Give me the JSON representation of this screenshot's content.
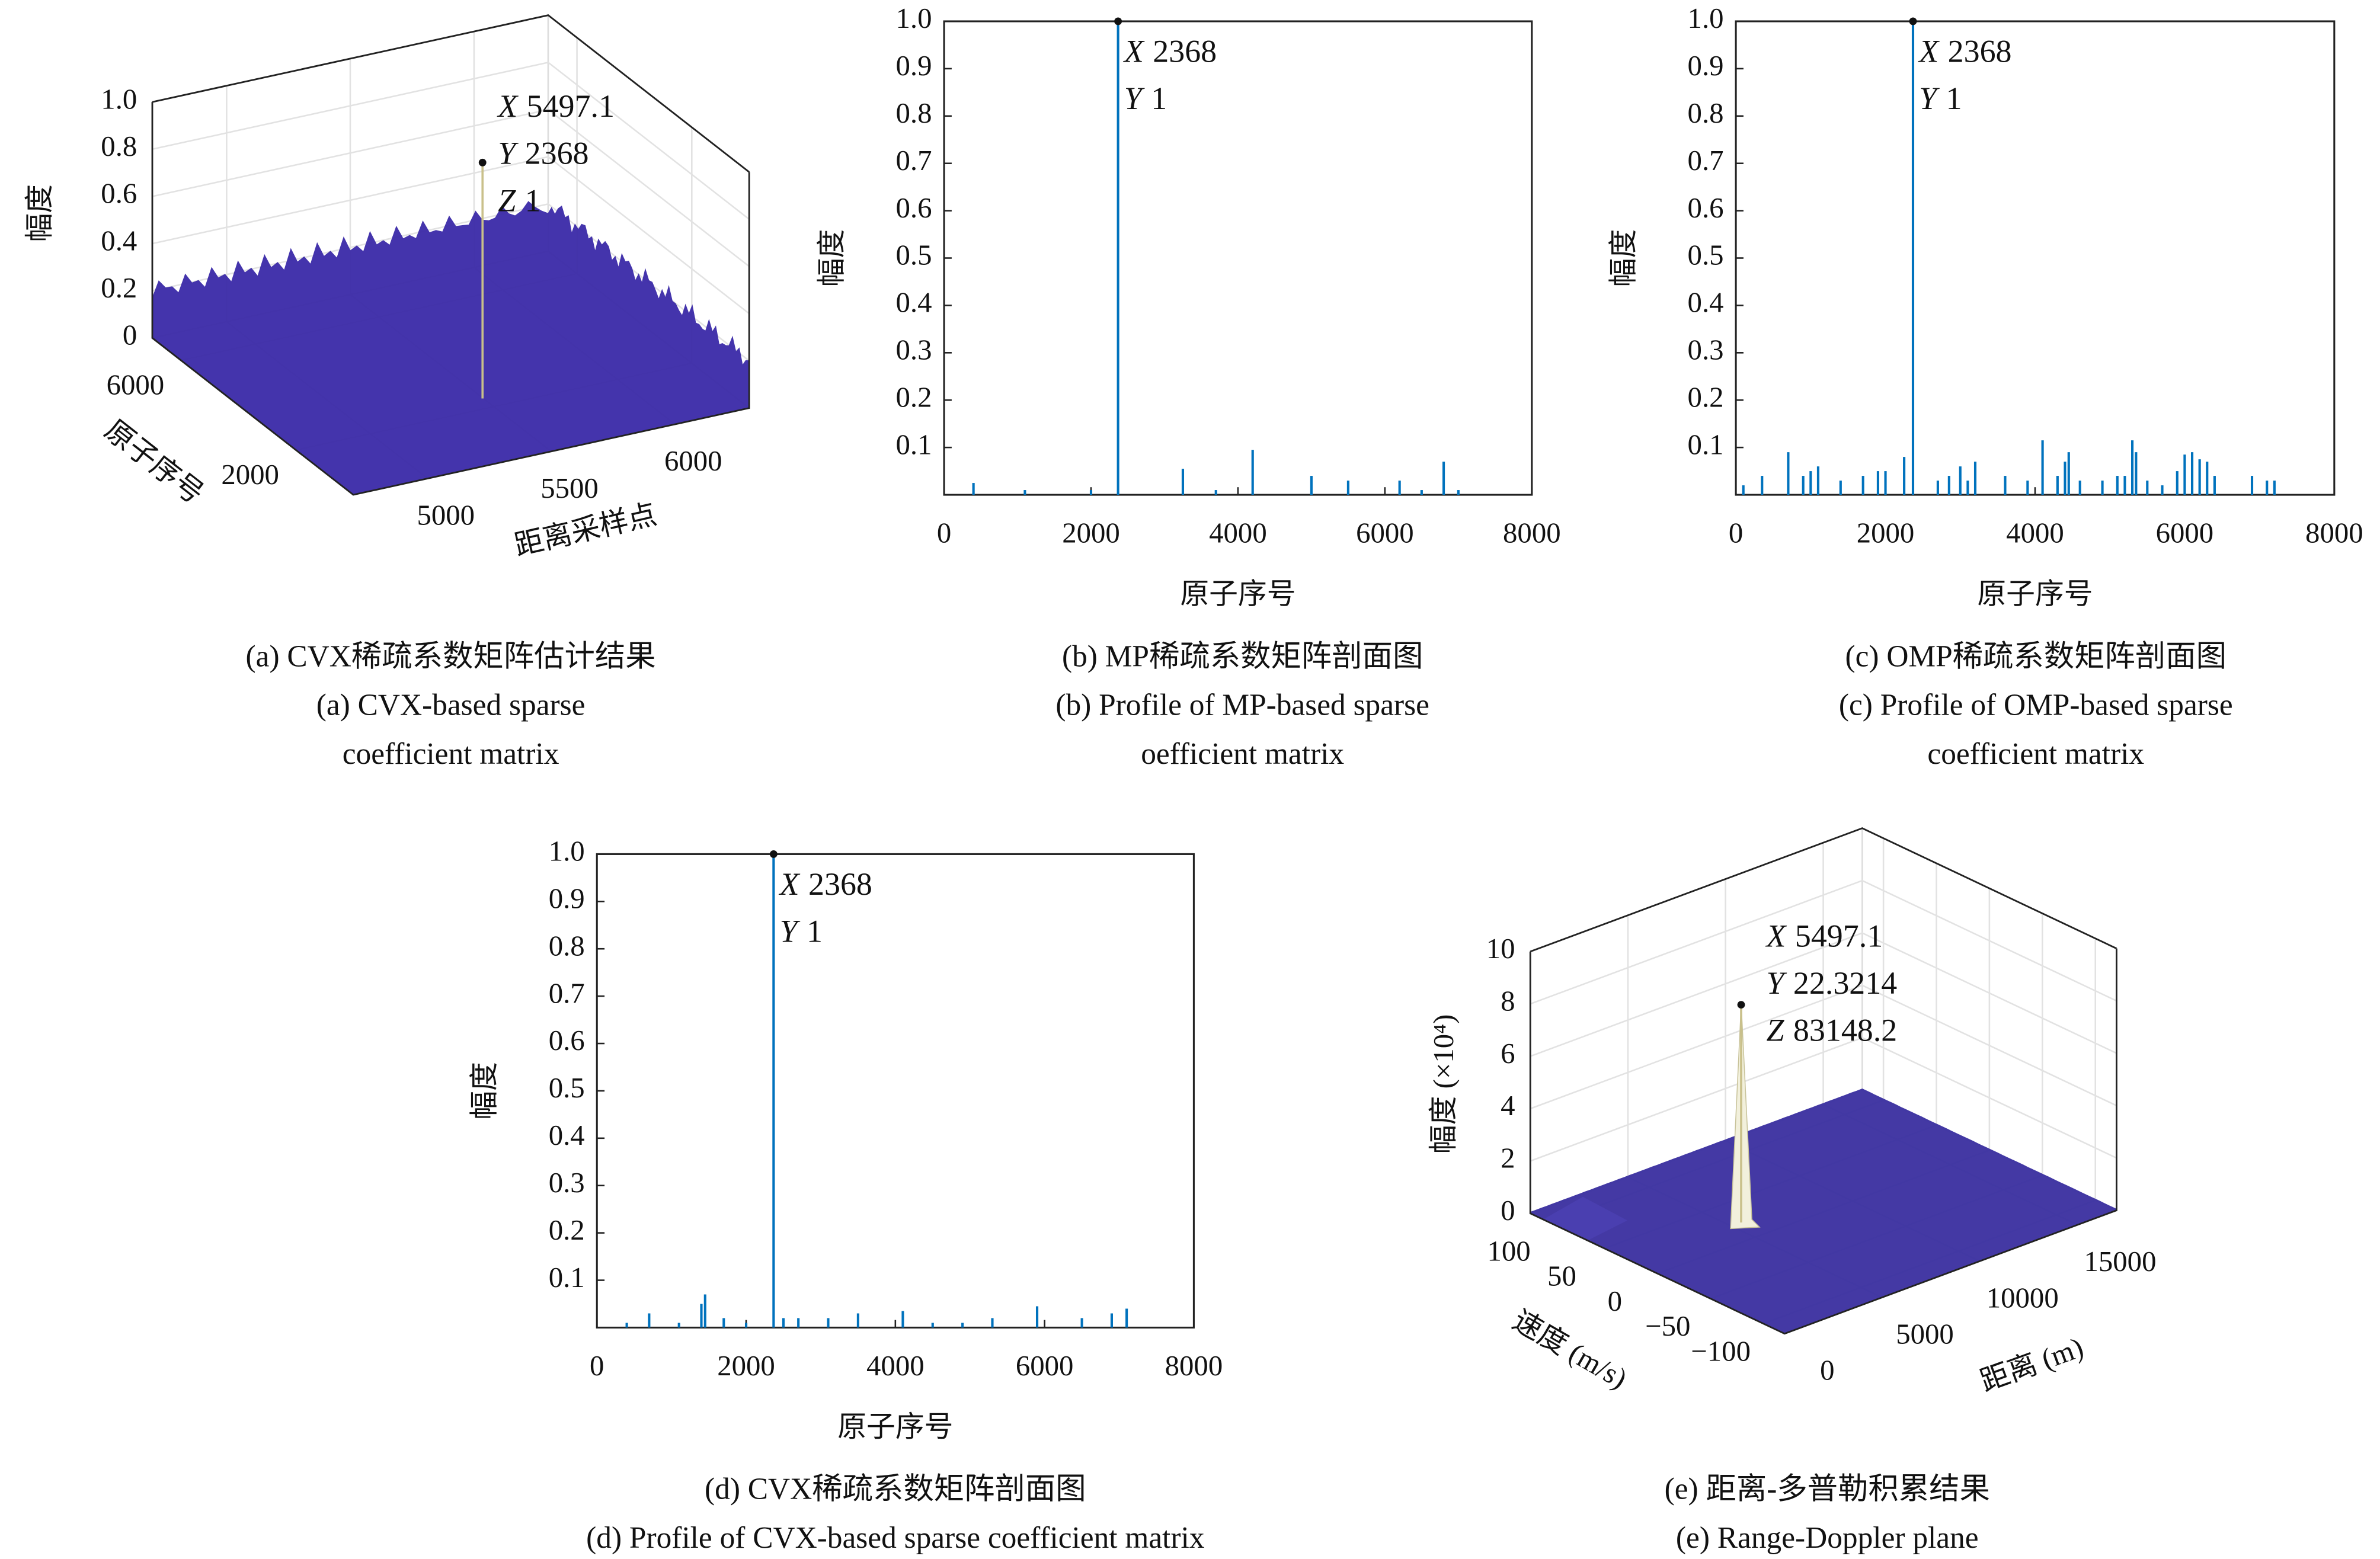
{
  "chart_data": [
    {
      "type": "surface",
      "xlabel": "距离采样点",
      "ylabel": "原子序号",
      "zlabel": "幅度",
      "xlim": [
        4700,
        6300
      ],
      "xticks": [
        5000,
        5500,
        6000
      ],
      "ylim": [
        0,
        7000
      ],
      "yticks": [
        2000,
        6000
      ],
      "zlim": [
        0,
        1
      ],
      "zticks": [
        0,
        0.2,
        0.4,
        0.6,
        0.8,
        {
          "value": 1,
          "label": "1.0"
        }
      ],
      "color": "#3b2aa8",
      "grid": true,
      "datatip": [
        {
          "label": "X",
          "value": 5497.1
        },
        {
          "label": "Y",
          "value": 2368
        },
        {
          "label": "Z",
          "value": 1
        }
      ],
      "caption": [
        "(a) CVX稀疏系数矩阵估计结果",
        "(a) CVX-based sparse",
        "coefficient matrix"
      ]
    },
    {
      "type": "stem",
      "xlabel": "原子序号",
      "ylabel": "幅度",
      "xlim": [
        0,
        8000
      ],
      "xticks": [
        0,
        2000,
        4000,
        6000,
        8000
      ],
      "ylim": [
        0,
        1
      ],
      "yticks": [
        0.1,
        0.2,
        0.3,
        0.4,
        0.5,
        0.6,
        0.7,
        0.8,
        0.9,
        {
          "value": 1,
          "label": "1.0"
        }
      ],
      "color": "#0072bd",
      "x": [
        400,
        1100,
        2000,
        2368,
        3250,
        3700,
        4200,
        5000,
        5500,
        6200,
        6500,
        6800,
        7000
      ],
      "values": [
        0.025,
        0.01,
        0.01,
        1,
        0.055,
        0.01,
        0.095,
        0.04,
        0.03,
        0.03,
        0.01,
        0.07,
        0.01
      ],
      "datatip": [
        {
          "label": "X",
          "value": 2368
        },
        {
          "label": "Y",
          "value": 1
        }
      ],
      "caption": [
        "(b) MP稀疏系数矩阵剖面图",
        "(b) Profile of MP-based sparse",
        "oefficient matrix"
      ]
    },
    {
      "type": "stem",
      "xlabel": "原子序号",
      "ylabel": "幅度",
      "xlim": [
        0,
        8000
      ],
      "xticks": [
        0,
        2000,
        4000,
        6000,
        8000
      ],
      "ylim": [
        0,
        1
      ],
      "yticks": [
        0.1,
        0.2,
        0.3,
        0.4,
        0.5,
        0.6,
        0.7,
        0.8,
        0.9,
        {
          "value": 1,
          "label": "1.0"
        }
      ],
      "color": "#0072bd",
      "x": [
        100,
        350,
        700,
        900,
        1000,
        1100,
        1400,
        1700,
        1900,
        2000,
        2250,
        2368,
        2700,
        2850,
        3000,
        3100,
        3200,
        3600,
        3900,
        4100,
        4300,
        4400,
        4450,
        4600,
        4900,
        5100,
        5200,
        5300,
        5350,
        5500,
        5700,
        5900,
        6000,
        6100,
        6200,
        6300,
        6400,
        6900,
        7100,
        7200
      ],
      "values": [
        0.02,
        0.04,
        0.09,
        0.04,
        0.05,
        0.06,
        0.03,
        0.04,
        0.05,
        0.05,
        0.08,
        1,
        0.03,
        0.04,
        0.06,
        0.03,
        0.07,
        0.04,
        0.03,
        0.115,
        0.04,
        0.07,
        0.09,
        0.03,
        0.03,
        0.04,
        0.04,
        0.115,
        0.09,
        0.03,
        0.02,
        0.05,
        0.085,
        0.09,
        0.075,
        0.07,
        0.04,
        0.04,
        0.03,
        0.03
      ],
      "datatip": [
        {
          "label": "X",
          "value": 2368
        },
        {
          "label": "Y",
          "value": 1
        }
      ],
      "caption": [
        "(c) OMP稀疏系数矩阵剖面图",
        "(c) Profile of OMP-based sparse",
        "coefficient matrix"
      ]
    },
    {
      "type": "stem",
      "xlabel": "原子序号",
      "ylabel": "幅度",
      "xlim": [
        0,
        8000
      ],
      "xticks": [
        0,
        2000,
        4000,
        6000,
        8000
      ],
      "ylim": [
        0,
        1
      ],
      "yticks": [
        0.1,
        0.2,
        0.3,
        0.4,
        0.5,
        0.6,
        0.7,
        0.8,
        0.9,
        {
          "value": 1,
          "label": "1.0"
        }
      ],
      "color": "#0072bd",
      "x": [
        400,
        700,
        1100,
        1400,
        1450,
        1700,
        2000,
        2368,
        2500,
        2700,
        3100,
        3500,
        4100,
        4500,
        4900,
        5300,
        5900,
        6500,
        6900,
        7100
      ],
      "values": [
        0.01,
        0.03,
        0.01,
        0.05,
        0.07,
        0.02,
        0.01,
        1,
        0.02,
        0.02,
        0.02,
        0.03,
        0.035,
        0.01,
        0.01,
        0.02,
        0.045,
        0.02,
        0.03,
        0.04
      ],
      "datatip": [
        {
          "label": "X",
          "value": 2368
        },
        {
          "label": "Y",
          "value": 1
        }
      ],
      "caption": [
        "(d) CVX稀疏系数矩阵剖面图",
        "(d) Profile of CVX-based sparse coefficient matrix"
      ]
    },
    {
      "type": "surface",
      "xlabel": "距离 (m)",
      "ylabel": "速度 (m/s)",
      "zlabel": "幅度 (×10⁴)",
      "xlim": [
        0,
        17000
      ],
      "xticks": [
        0,
        5000,
        10000,
        15000
      ],
      "ylim": [
        -120,
        120
      ],
      "yticks": [
        100,
        50,
        0,
        {
          "value": -50,
          "label": "−50"
        },
        {
          "value": -100,
          "label": "−100"
        }
      ],
      "zlim": [
        0,
        100000
      ],
      "zticks": [
        0,
        {
          "value": 20000,
          "label": "2"
        },
        {
          "value": 40000,
          "label": "4"
        },
        {
          "value": 60000,
          "label": "6"
        },
        {
          "value": 80000,
          "label": "8"
        },
        {
          "value": 100000,
          "label": "10"
        }
      ],
      "color": "#3a2fa0",
      "grid": true,
      "datatip": [
        {
          "label": "X",
          "value": 5497.1
        },
        {
          "label": "Y",
          "value": 22.3214
        },
        {
          "label": "Z",
          "value": 83148.2
        }
      ],
      "caption": [
        "(e) 距离-多普勒积累结果",
        "(e) Range-Doppler plane"
      ]
    }
  ]
}
